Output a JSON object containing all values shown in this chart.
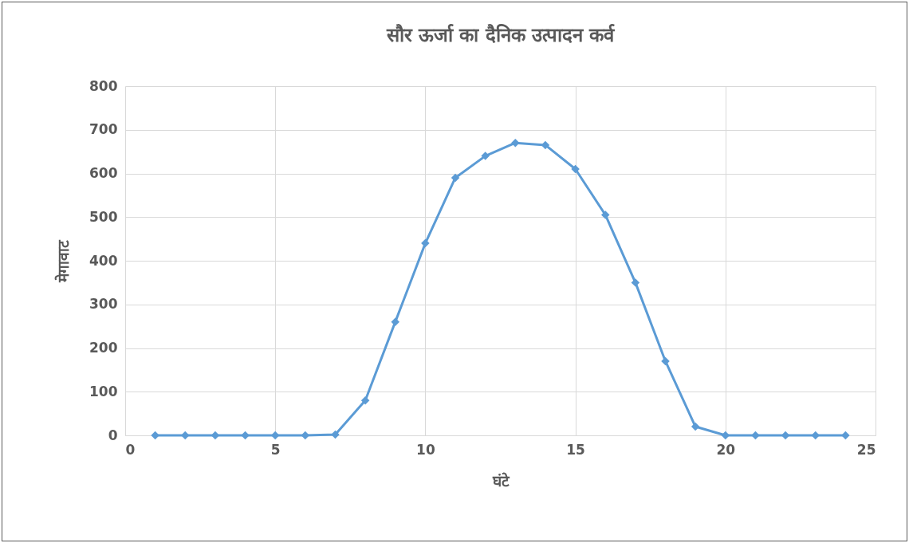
{
  "chart_data": {
    "type": "line",
    "title": "सौर ऊर्जा का दैनिक उत्पादन कर्व",
    "xlabel": "घंटे",
    "ylabel": "मेगावाट",
    "x": [
      1,
      2,
      3,
      4,
      5,
      6,
      7,
      8,
      9,
      10,
      11,
      12,
      13,
      14,
      15,
      16,
      17,
      18,
      19,
      20,
      21,
      22,
      23,
      24
    ],
    "series": [
      {
        "color": "#5b9bd5",
        "values": [
          0,
          0,
          0,
          0,
          0,
          0,
          2,
          80,
          260,
          440,
          590,
          640,
          670,
          665,
          610,
          505,
          350,
          170,
          20,
          0,
          0,
          0,
          0,
          0
        ]
      }
    ],
    "xlim": [
      0,
      25
    ],
    "xticks": [
      0,
      5,
      10,
      15,
      20,
      25
    ],
    "ylim": [
      0,
      800
    ],
    "yticks": [
      0,
      100,
      200,
      300,
      400,
      500,
      600,
      700,
      800
    ],
    "grid": true,
    "marker": "diamond",
    "line_style": "solid"
  }
}
